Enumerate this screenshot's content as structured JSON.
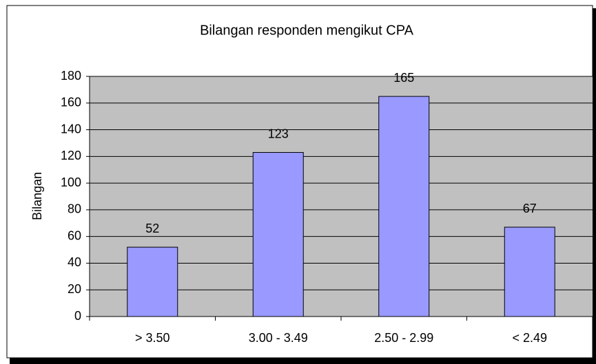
{
  "chart_data": {
    "type": "bar",
    "title": "Bilangan responden mengikut CPA",
    "y_label": "Bilangan",
    "categories": [
      "> 3.50",
      "3.00 - 3.49",
      "2.50 - 2.99",
      "< 2.49"
    ],
    "values": [
      52,
      123,
      165,
      67
    ],
    "color": "#9999ff",
    "ylim": [
      0,
      180
    ],
    "yticks": [
      0,
      20,
      40,
      60,
      80,
      100,
      120,
      140,
      160,
      180
    ],
    "grid": true
  }
}
